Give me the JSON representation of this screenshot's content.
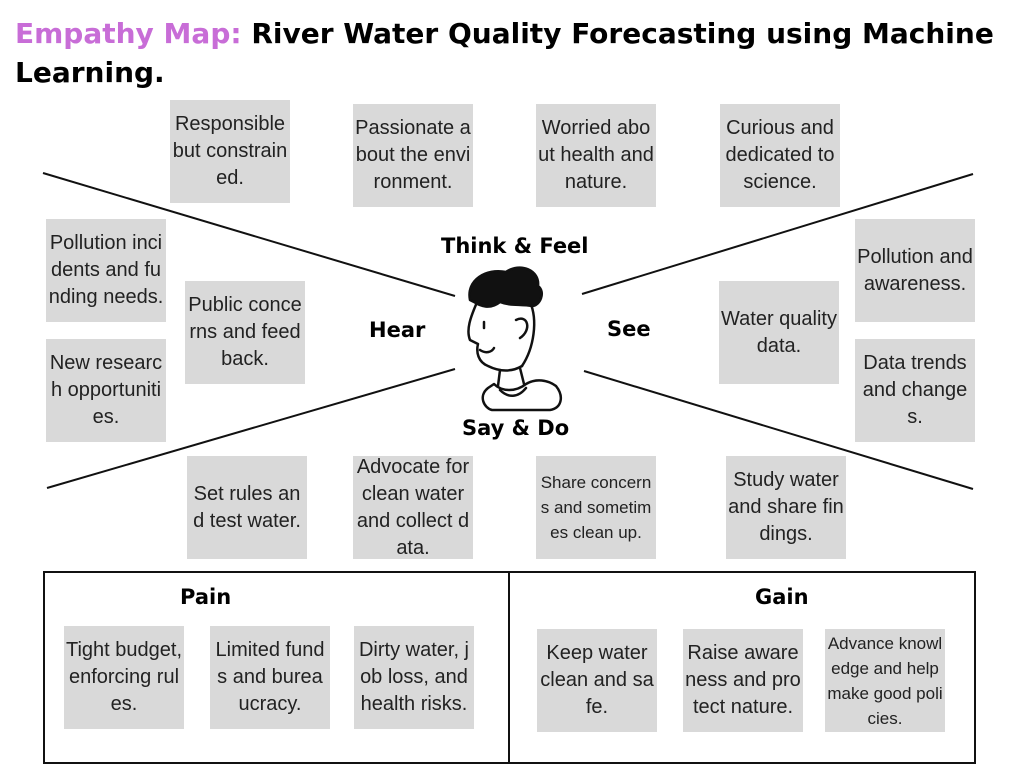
{
  "title": {
    "prefix": "Empathy Map:",
    "main": "River Water Quality Forecasting using Machine Learning."
  },
  "colors": {
    "prefix": "#c86dd7",
    "note": "#d9d9d9"
  },
  "quadrants": {
    "think_feel": "Think & Feel",
    "hear": "Hear",
    "see": "See",
    "say_do": "Say & Do"
  },
  "think_feel_notes": [
    "Responsible but constrained.",
    "Passionate about the environment.",
    "Worried about health and nature.",
    "Curious and dedicated to science."
  ],
  "hear_notes": [
    "Pollution incidents and funding needs.",
    "New research opportunities.",
    "Public concerns and feedback."
  ],
  "see_notes": [
    "Pollution and awareness.",
    "Water quality data.",
    "Data trends and changes."
  ],
  "say_do_notes": [
    "Set rules and test water.",
    "Advocate for clean water and collect data.",
    "Share concerns and sometimes clean up.",
    "Study water and share findings."
  ],
  "pain": {
    "label": "Pain",
    "notes": [
      "Tight budget, enforcing rules.",
      "Limited funds and bureaucracy.",
      "Dirty water, job loss, and health risks."
    ]
  },
  "gain": {
    "label": "Gain",
    "notes": [
      "Keep water clean and safe.",
      "Raise awareness and protect nature.",
      "Advance knowledge and help make good policies."
    ]
  },
  "icons": {
    "center": "person-icon"
  }
}
